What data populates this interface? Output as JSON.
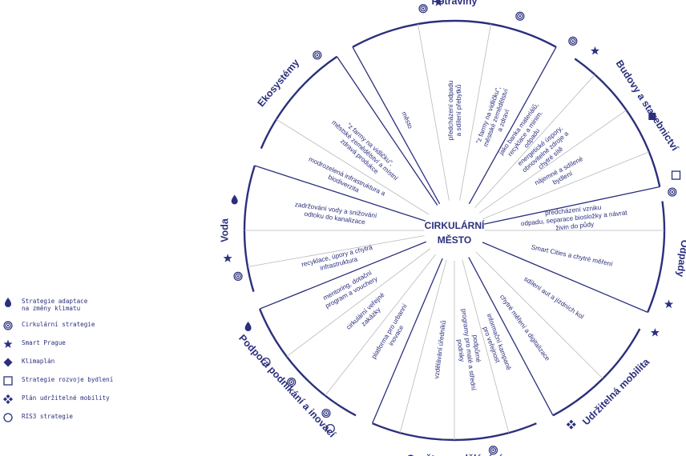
{
  "center": {
    "line1": "CIRKULÁRNÍ",
    "line2": "MĚSTO"
  },
  "colors": {
    "primary": "#2b2f7c",
    "divider": "#b9b9b9"
  },
  "categories": [
    {
      "id": "potraviny",
      "label": "Potraviny",
      "icons": [
        "cirkularni-strategie-icon",
        "star-icon",
        "cirkularni-strategie-icon"
      ]
    },
    {
      "id": "budovy",
      "label": "Budovy a stavebnictví",
      "icons": [
        "cirkularni-strategie-icon",
        "star-icon",
        "diamond-icon",
        "square-icon"
      ]
    },
    {
      "id": "odpady",
      "label": "Odpady",
      "icons": [
        "cirkularni-strategie-icon",
        "star-icon"
      ]
    },
    {
      "id": "mobilita",
      "label": "Udržitelná mobilita",
      "icons": [
        "star-icon",
        "mobility-icon"
      ]
    },
    {
      "id": "osveta",
      "label": "Osvěta a vzdělávání",
      "icons": [
        "cirkularni-strategie-icon"
      ]
    },
    {
      "id": "podpora",
      "label": "Podpora podnikání a inovací",
      "icons": [
        "cirkularni-strategie-icon",
        "circle-icon",
        "cirkularni-strategie-icon",
        "circle-icon"
      ]
    },
    {
      "id": "voda",
      "label": "Voda",
      "icons": [
        "drop-icon",
        "star-icon",
        "cirkularni-strategie-icon"
      ]
    },
    {
      "id": "ekosystemy",
      "label": "Ekosystémy",
      "icons": [
        "drop-icon",
        "cirkularni-strategie-icon"
      ]
    }
  ],
  "spokes": [
    {
      "id": "s1",
      "lines": [
        "předcházení odpadu",
        "a sdílení přebytků"
      ]
    },
    {
      "id": "s2",
      "lines": [
        "\"z farmy na vidličku\",",
        "městské zemědělství",
        "a zdraví"
      ]
    },
    {
      "id": "s3",
      "lines": [
        "jako banka materiálů,",
        "recyklace a minim.",
        "odpadu"
      ]
    },
    {
      "id": "s4",
      "lines": [
        "energetické úspory,",
        "obnovitelné zdroje a",
        "chytré sítě"
      ]
    },
    {
      "id": "s5",
      "lines": [
        "nájemné a sdílené",
        "bydlení"
      ]
    },
    {
      "id": "s6",
      "lines": [
        "předcházení vzniku",
        "odpadu, separace biosložky a návrat",
        "živin do půdy"
      ]
    },
    {
      "id": "s7",
      "lines": [
        "Smart Cities a chytré měření"
      ]
    },
    {
      "id": "s8",
      "lines": [
        "sdílení aut a jízdních kol"
      ]
    },
    {
      "id": "s9",
      "lines": [
        "chytré měření a digitalizace"
      ]
    },
    {
      "id": "s10",
      "lines": [
        "informační kampaně",
        "pro veřejnost"
      ]
    },
    {
      "id": "s11",
      "lines": [
        "podpůrné",
        "programy pro malé a střední",
        "podniky"
      ]
    },
    {
      "id": "s12",
      "lines": [
        "vzdělávání úředníků"
      ]
    },
    {
      "id": "s13",
      "lines": [
        "platforma pro urbanní",
        "inovace"
      ]
    },
    {
      "id": "s14",
      "lines": [
        "cirkulární veřejné",
        "zakázky"
      ]
    },
    {
      "id": "s15",
      "lines": [
        "mentoring, dotační",
        "program a vouchery"
      ]
    },
    {
      "id": "s16",
      "lines": [
        "recyklace, úpory a chytrá",
        "infrastruktura"
      ]
    },
    {
      "id": "s17",
      "lines": [
        "zadržování vody a snižování",
        "odtoku do kanalizace"
      ]
    },
    {
      "id": "s18",
      "lines": [
        "modrozelená infrastruktura a",
        "biodiverzita"
      ]
    },
    {
      "id": "s19",
      "lines": [
        "\"z farmy na vidličku\",",
        "městské zemědělství a místní",
        "zdravá produkce"
      ]
    },
    {
      "id": "s20",
      "lines": [
        "město"
      ]
    }
  ],
  "legend": [
    {
      "icon": "drop-icon",
      "label": "Strategie adaptace\nna změny klimatu"
    },
    {
      "icon": "cirkularni-strategie-icon",
      "label": "Cirkulární strategie"
    },
    {
      "icon": "star-icon",
      "label": "Smart Prague"
    },
    {
      "icon": "diamond-icon",
      "label": "Klimaplán"
    },
    {
      "icon": "square-icon",
      "label": "Strategie rozvoje bydlení"
    },
    {
      "icon": "mobility-icon",
      "label": "Plán udržitelné mobility"
    },
    {
      "icon": "circle-icon",
      "label": "RIS3 strategie"
    }
  ]
}
